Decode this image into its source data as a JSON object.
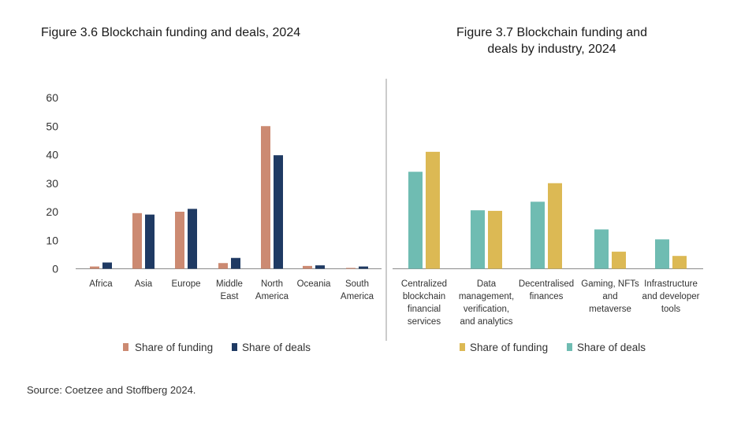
{
  "figures": [
    {
      "title": "Figure 3.6 Blockchain funding and deals, 2024",
      "title_lines": [
        "Figure 3.6 Blockchain funding and deals, 2024"
      ],
      "legend": [
        {
          "label": "Share of funding",
          "color": "#cc8a72"
        },
        {
          "label": "Share of deals",
          "color": "#1f3a63"
        }
      ]
    },
    {
      "title": "Figure 3.7 Blockchain funding and deals by industry, 2024",
      "title_lines": [
        "Figure 3.7 Blockchain funding and",
        "deals by industry, 2024"
      ],
      "legend": [
        {
          "label": "Share of funding",
          "color": "#dcb954"
        },
        {
          "label": "Share of deals",
          "color": "#6fbcb2"
        }
      ]
    }
  ],
  "source": "Source: Coetzee and Stoffberg 2024.",
  "chart_data": [
    {
      "type": "bar",
      "title": "Figure 3.6 Blockchain funding and deals, 2024",
      "categories": [
        [
          "Africa"
        ],
        [
          "Asia"
        ],
        [
          "Europe"
        ],
        [
          "Middle",
          "East"
        ],
        [
          "North",
          "America"
        ],
        [
          "Oceania"
        ],
        [
          "South",
          "America"
        ]
      ],
      "series": [
        {
          "name": "Share of funding",
          "color": "#cc8a72",
          "values": [
            0.8,
            19.5,
            20,
            2,
            50,
            1,
            0.3
          ]
        },
        {
          "name": "Share of deals",
          "color": "#1f3a63",
          "values": [
            2.2,
            19,
            21,
            3.8,
            39.8,
            1.2,
            0.8
          ]
        }
      ],
      "yticks": [
        0,
        10,
        20,
        30,
        40,
        50,
        60
      ],
      "ylim": [
        0,
        60
      ],
      "legend_position": "bottom"
    },
    {
      "type": "bar",
      "title": "Figure 3.7 Blockchain funding and deals by industry, 2024",
      "categories": [
        [
          "Centralized",
          "blockchain",
          "financial",
          "services"
        ],
        [
          "Data",
          "management,",
          "verification,",
          "and analytics"
        ],
        [
          "Decentralised",
          "finances"
        ],
        [
          "Gaming, NFTs",
          "and",
          "metaverse"
        ],
        [
          "Infrastructure",
          "and developer",
          "tools"
        ]
      ],
      "series": [
        {
          "name": "Share of deals",
          "color": "#6fbcb2",
          "values": [
            34,
            20.5,
            23.5,
            13.8,
            10.3
          ]
        },
        {
          "name": "Share of funding",
          "color": "#dcb954",
          "values": [
            41,
            20.3,
            30,
            6,
            4.5
          ]
        }
      ],
      "ylim": [
        0,
        60
      ],
      "legend_position": "bottom"
    }
  ]
}
